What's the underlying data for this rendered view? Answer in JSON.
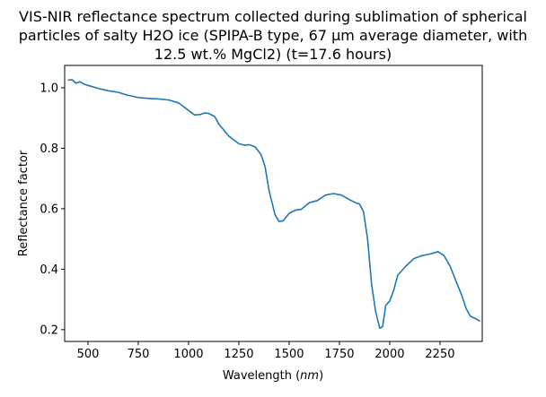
{
  "chart_data": {
    "type": "line",
    "title": [
      "VIS-NIR reflectance spectrum collected during sublimation of spherical",
      "particles of salty H2O ice (SPIPA-B type, 67 µm average diameter, with",
      "12.5 wt.% MgCl2) (t=17.6 hours)"
    ],
    "xlabel": "Wavelength (nm)",
    "ylabel": "Reflectance factor",
    "xlim": [
      384,
      2460
    ],
    "ylim": [
      0.161,
      1.074
    ],
    "xticks": [
      500,
      750,
      1000,
      1250,
      1500,
      1750,
      2000,
      2250
    ],
    "yticks": [
      0.2,
      0.4,
      0.6,
      0.8,
      1.0
    ],
    "ytick_labels": [
      "0.2",
      "0.4",
      "0.6",
      "0.8",
      "1.0"
    ],
    "grid": false,
    "color": "#1f77b4",
    "x": [
      400,
      420,
      440,
      460,
      480,
      500,
      550,
      600,
      650,
      700,
      750,
      800,
      850,
      900,
      950,
      1000,
      1030,
      1060,
      1080,
      1100,
      1130,
      1150,
      1200,
      1250,
      1280,
      1300,
      1330,
      1360,
      1380,
      1400,
      1430,
      1450,
      1470,
      1500,
      1530,
      1560,
      1600,
      1640,
      1680,
      1720,
      1760,
      1800,
      1830,
      1850,
      1870,
      1890,
      1910,
      1930,
      1950,
      1965,
      1980,
      2000,
      2020,
      2040,
      2080,
      2120,
      2160,
      2200,
      2240,
      2270,
      2300,
      2330,
      2360,
      2380,
      2400,
      2430,
      2450
    ],
    "y": [
      1.025,
      1.027,
      1.015,
      1.02,
      1.012,
      1.008,
      0.998,
      0.99,
      0.985,
      0.975,
      0.968,
      0.965,
      0.963,
      0.96,
      0.95,
      0.925,
      0.91,
      0.912,
      0.917,
      0.915,
      0.905,
      0.88,
      0.84,
      0.815,
      0.81,
      0.812,
      0.805,
      0.78,
      0.74,
      0.66,
      0.58,
      0.558,
      0.56,
      0.585,
      0.595,
      0.598,
      0.62,
      0.627,
      0.645,
      0.65,
      0.645,
      0.63,
      0.62,
      0.615,
      0.59,
      0.5,
      0.35,
      0.26,
      0.205,
      0.21,
      0.28,
      0.295,
      0.33,
      0.38,
      0.41,
      0.435,
      0.445,
      0.45,
      0.458,
      0.445,
      0.41,
      0.36,
      0.31,
      0.27,
      0.245,
      0.235,
      0.228
    ]
  }
}
